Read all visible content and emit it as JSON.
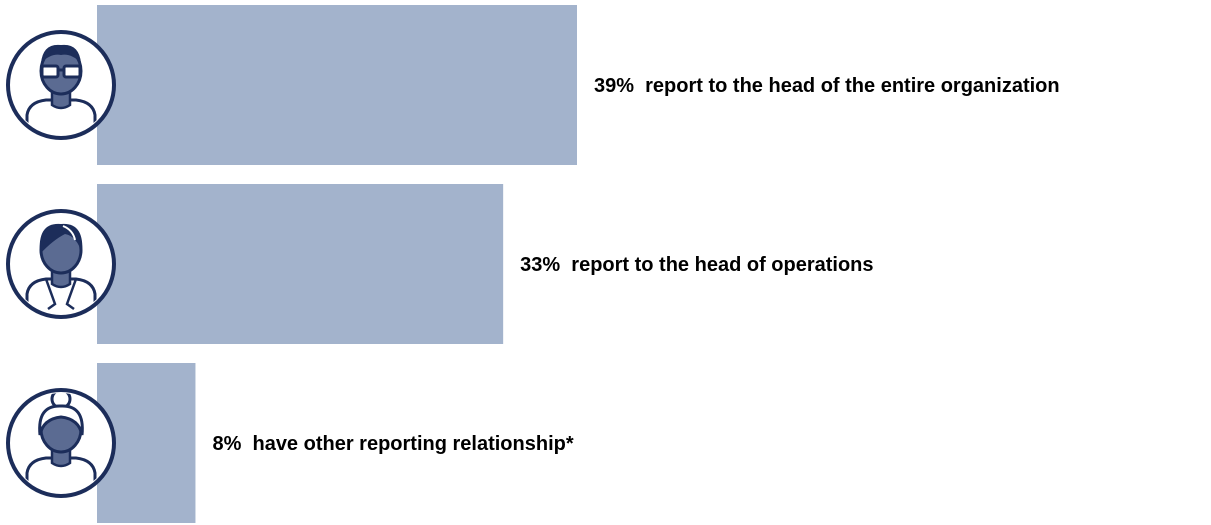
{
  "chart_data": {
    "type": "bar",
    "orientation": "horizontal",
    "categories": [
      "report to the head of the entire organization",
      "report to the head of operations",
      "have other reporting relationship*"
    ],
    "values": [
      39,
      33,
      8
    ],
    "labels": [
      "39%  report to the head of the entire organization",
      "33%  report to the head of operations",
      "8%  have other reporting relationship*"
    ],
    "icons": [
      "person-glasses-icon",
      "person-short-hair-icon",
      "person-hair-bun-icon"
    ],
    "xlim": [
      0,
      39
    ],
    "grid": false,
    "legend": "none"
  },
  "colors": {
    "bar": "#a3b3cc",
    "icon_dark": "#1c2d5a",
    "icon_mid": "#5b6b92",
    "text": "#000000"
  }
}
